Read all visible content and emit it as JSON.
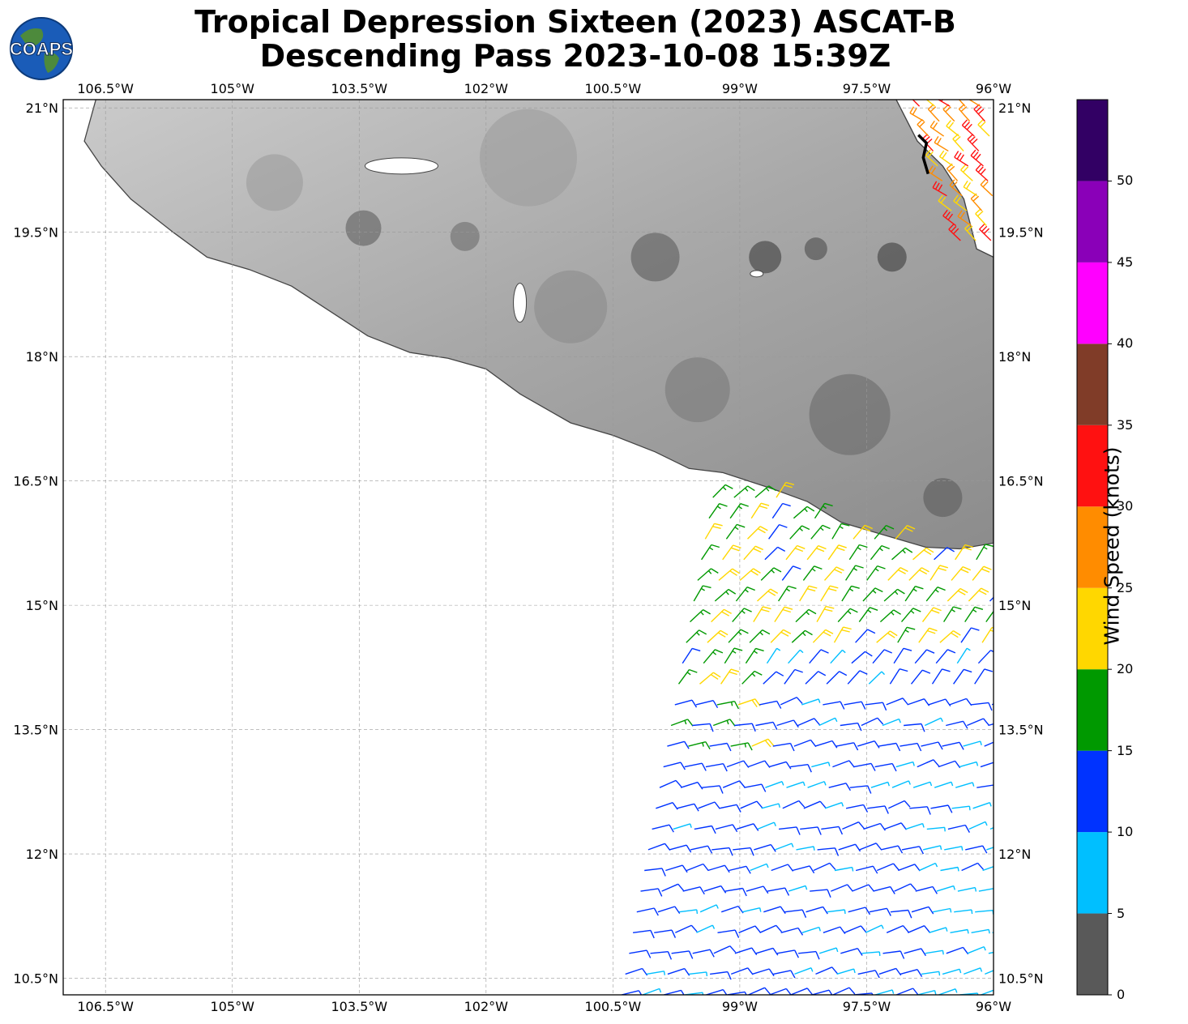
{
  "title_line1": "Tropical Depression Sixteen (2023) ASCAT-B",
  "title_line2": "Descending Pass 2023-10-08 15:39Z",
  "logo_text": "COAPS",
  "map": {
    "lon_range": [
      -107.0,
      -96.0
    ],
    "lat_range": [
      10.3,
      21.1
    ],
    "lon_ticks": [
      {
        "lon": -106.5,
        "label": "106.5°W"
      },
      {
        "lon": -105.0,
        "label": "105°W"
      },
      {
        "lon": -103.5,
        "label": "103.5°W"
      },
      {
        "lon": -102.0,
        "label": "102°W"
      },
      {
        "lon": -100.5,
        "label": "100.5°W"
      },
      {
        "lon": -99.0,
        "label": "99°W"
      },
      {
        "lon": -97.5,
        "label": "97.5°W"
      },
      {
        "lon": -96.0,
        "label": "96°W"
      }
    ],
    "lat_ticks": [
      {
        "lat": 21.0,
        "label": "21°N"
      },
      {
        "lat": 19.5,
        "label": "19.5°N"
      },
      {
        "lat": 18.0,
        "label": "18°N"
      },
      {
        "lat": 16.5,
        "label": "16.5°N"
      },
      {
        "lat": 15.0,
        "label": "15°N"
      },
      {
        "lat": 13.5,
        "label": "13.5°N"
      },
      {
        "lat": 12.0,
        "label": "12°N"
      },
      {
        "lat": 10.5,
        "label": "10.5°N"
      }
    ],
    "land_color": "#e2e2e2",
    "coastline_color": "#444444",
    "grid": true,
    "storm_track_position": {
      "lon": -96.85,
      "lat": 20.4
    }
  },
  "colorbar": {
    "label": "Wind Speed (knots)",
    "bins": [
      {
        "min": 0,
        "max": 5,
        "color": "#595959"
      },
      {
        "min": 5,
        "max": 10,
        "color": "#00bfff"
      },
      {
        "min": 10,
        "max": 15,
        "color": "#0033ff"
      },
      {
        "min": 15,
        "max": 20,
        "color": "#009900"
      },
      {
        "min": 20,
        "max": 25,
        "color": "#ffd700"
      },
      {
        "min": 25,
        "max": 30,
        "color": "#ff8c00"
      },
      {
        "min": 30,
        "max": 35,
        "color": "#ff1111"
      },
      {
        "min": 35,
        "max": 40,
        "color": "#803c28"
      },
      {
        "min": 40,
        "max": 45,
        "color": "#ff00ff"
      },
      {
        "min": 45,
        "max": 50,
        "color": "#8a00b8"
      },
      {
        "min": 50,
        "max": 55,
        "color": "#320064"
      }
    ],
    "tick_labels": [
      "0",
      "5",
      "10",
      "15",
      "20",
      "25",
      "30",
      "35",
      "40",
      "45",
      "50"
    ]
  }
}
